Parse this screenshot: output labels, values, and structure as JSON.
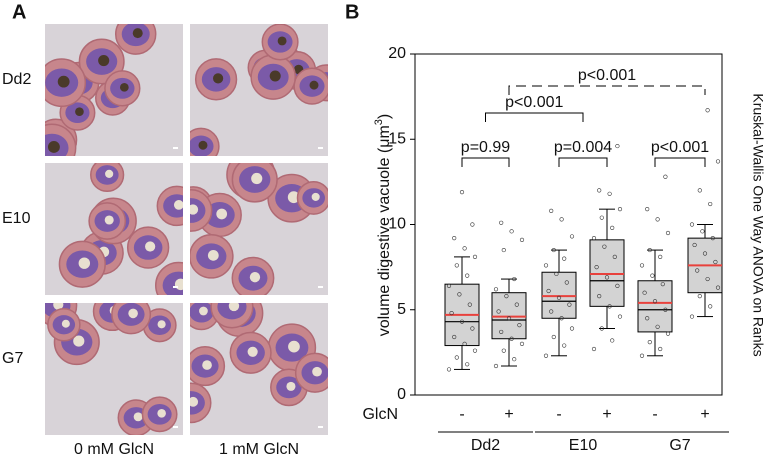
{
  "panels": {
    "a_label": "A",
    "b_label": "B",
    "rows": [
      "Dd2",
      "E10",
      "G7"
    ],
    "columns": [
      "0 mM GlcN",
      "1 mM GlcN"
    ]
  },
  "chart_data": {
    "type": "box",
    "ylabel": [
      "volume digestive vacuole (μm",
      "3",
      ")"
    ],
    "side_label": "Kruskal-Wallis One Way ANOVA on Ranks",
    "xlabel": "GlcN",
    "ylim": [
      0,
      20
    ],
    "yticks": [
      0,
      5,
      10,
      15,
      20
    ],
    "groups": [
      "Dd2",
      "E10",
      "G7"
    ],
    "box_color": "#d3d3d3",
    "median_color": "#000000",
    "mean_color": "#e8413c",
    "boxes": [
      {
        "treatment": "-",
        "whisker_low": 1.5,
        "q1": 2.9,
        "median": 4.3,
        "mean": 4.7,
        "q3": 6.5,
        "whisker_high": 8.1,
        "points": [
          1.5,
          1.8,
          2.2,
          2.6,
          3.0,
          3.4,
          3.9,
          4.3,
          4.8,
          5.3,
          5.9,
          6.4,
          7.0,
          7.6,
          8.1,
          8.6,
          9.2,
          10.0,
          11.9
        ]
      },
      {
        "treatment": "+",
        "whisker_low": 1.7,
        "q1": 3.3,
        "median": 4.4,
        "mean": 4.6,
        "q3": 6.0,
        "whisker_high": 6.8,
        "points": [
          1.7,
          2.1,
          2.6,
          3.0,
          3.3,
          3.7,
          4.1,
          4.5,
          4.9,
          5.3,
          5.8,
          6.2,
          6.8,
          8.5,
          9.1,
          9.6,
          10.1
        ]
      },
      {
        "treatment": "-",
        "whisker_low": 2.3,
        "q1": 4.5,
        "median": 5.5,
        "mean": 5.8,
        "q3": 7.2,
        "whisker_high": 8.5,
        "points": [
          2.3,
          2.9,
          3.4,
          3.9,
          4.5,
          4.9,
          5.3,
          5.7,
          6.1,
          6.6,
          7.1,
          7.6,
          8.0,
          8.5,
          9.3,
          10.3,
          10.8
        ]
      },
      {
        "treatment": "+",
        "whisker_low": 3.9,
        "q1": 5.2,
        "median": 6.7,
        "mean": 7.1,
        "q3": 9.1,
        "whisker_high": 10.9,
        "points": [
          2.7,
          3.2,
          3.9,
          4.6,
          5.2,
          5.8,
          6.4,
          6.9,
          7.5,
          8.1,
          8.7,
          9.2,
          9.8,
          10.4,
          10.9,
          11.8,
          12.0,
          14.6
        ]
      },
      {
        "treatment": "-",
        "whisker_low": 2.3,
        "q1": 3.7,
        "median": 5.0,
        "mean": 5.4,
        "q3": 6.7,
        "whisker_high": 8.5,
        "points": [
          2.3,
          2.7,
          3.1,
          3.6,
          4.0,
          4.5,
          5.0,
          5.5,
          6.0,
          6.5,
          7.0,
          7.6,
          8.1,
          8.5,
          9.5,
          10.3,
          10.9,
          12.8
        ]
      },
      {
        "treatment": "+",
        "whisker_low": 4.6,
        "q1": 6.0,
        "median": 7.6,
        "mean": 7.6,
        "q3": 9.2,
        "whisker_high": 10.0,
        "points": [
          4.6,
          5.2,
          5.8,
          6.3,
          6.8,
          7.3,
          7.8,
          8.3,
          8.8,
          9.2,
          9.6,
          10.0,
          11.2,
          12.0,
          13.7,
          16.7
        ]
      }
    ],
    "comparisons": [
      {
        "from": 0,
        "to": 1,
        "label": "p=0.99",
        "dashed": false
      },
      {
        "from": 2,
        "to": 3,
        "label": "p=0.004",
        "dashed": false
      },
      {
        "from": 4,
        "to": 5,
        "label": "p<0.001",
        "dashed": false
      },
      {
        "from": 0.5,
        "to": 2.5,
        "label": "p<0.001",
        "dashed": false
      },
      {
        "from": 1,
        "to": 5,
        "label": "p<0.001",
        "dashed": true
      }
    ]
  }
}
